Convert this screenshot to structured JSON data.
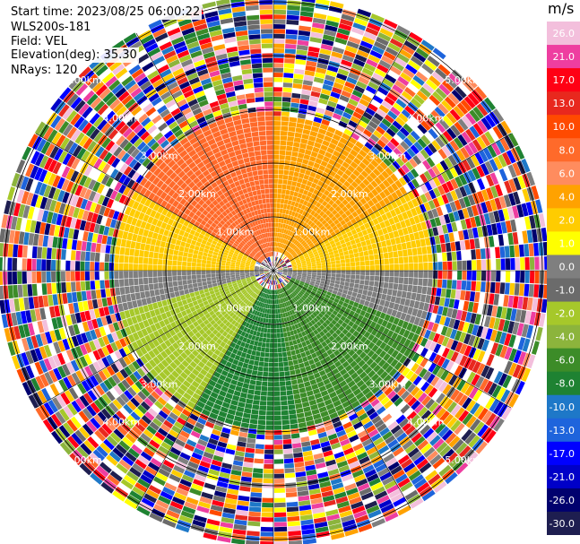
{
  "info": {
    "start_time": "Start time: 2023/08/25 06:00:22",
    "site": "WLS200s-181",
    "field": "Field: VEL",
    "elevation": "Elevation(deg): 35.30",
    "nrays": "NRays: 120"
  },
  "colorbar": {
    "unit": "m/s",
    "tick_labels": [
      "26.0",
      "21.0",
      "17.0",
      "13.0",
      "10.0",
      "8.0",
      "6.0",
      "4.0",
      "2.0",
      "1.0",
      "0.0",
      "-1.0",
      "-2.0",
      "-4.0",
      "-6.0",
      "-8.0",
      "-10.0",
      "-13.0",
      "-17.0",
      "-21.0",
      "-26.0",
      "-30.0"
    ],
    "segments": [
      {
        "from": 26,
        "to": 30,
        "color": "#f3bfdc"
      },
      {
        "from": 21,
        "to": 26,
        "color": "#ee3ea0"
      },
      {
        "from": 17,
        "to": 21,
        "color": "#ff0014"
      },
      {
        "from": 13,
        "to": 17,
        "color": "#e8281e"
      },
      {
        "from": 10,
        "to": 13,
        "color": "#ff4a00"
      },
      {
        "from": 8,
        "to": 10,
        "color": "#ff6a2a"
      },
      {
        "from": 6,
        "to": 8,
        "color": "#ff8c5e"
      },
      {
        "from": 4,
        "to": 6,
        "color": "#ffa200"
      },
      {
        "from": 2,
        "to": 4,
        "color": "#ffcc00"
      },
      {
        "from": 1,
        "to": 2,
        "color": "#ffff00"
      },
      {
        "from": 0,
        "to": 1,
        "color": "#7f7f7f"
      },
      {
        "from": -1,
        "to": 0,
        "color": "#6b6b6b"
      },
      {
        "from": -2,
        "to": -1,
        "color": "#a6c82a"
      },
      {
        "from": -4,
        "to": -2,
        "color": "#8cb43c"
      },
      {
        "from": -6,
        "to": -4,
        "color": "#3c8c28"
      },
      {
        "from": -8,
        "to": -6,
        "color": "#1e8232"
      },
      {
        "from": -10,
        "to": -8,
        "color": "#1e78c8"
      },
      {
        "from": -13,
        "to": -10,
        "color": "#1e64dc"
      },
      {
        "from": -17,
        "to": -13,
        "color": "#0000ff"
      },
      {
        "from": -21,
        "to": -17,
        "color": "#0000c8"
      },
      {
        "from": -26,
        "to": -21,
        "color": "#00006e"
      },
      {
        "from": -30,
        "to": -26,
        "color": "#1e1e50"
      }
    ]
  },
  "rings": [
    {
      "range_km": 1,
      "label": "1.00km"
    },
    {
      "range_km": 2,
      "label": "2.00km"
    },
    {
      "range_km": 3,
      "label": "3.00km"
    },
    {
      "range_km": 4,
      "label": "4.00km"
    },
    {
      "range_km": 5,
      "label": "5.00km"
    }
  ],
  "chart_data": {
    "type": "heatmap",
    "projection": "polar PPI scan",
    "field": "VEL",
    "units": "m/s",
    "n_rays": 120,
    "max_range_km": 5.1,
    "range_rings_km": [
      1,
      2,
      3,
      4,
      5
    ],
    "vmin": -30,
    "vmax": 30,
    "sectors": [
      {
        "azimuth_deg": [
          300,
          360
        ],
        "range_km": [
          0.2,
          2.9
        ],
        "value": 8,
        "note": "orange, northwest"
      },
      {
        "azimuth_deg": [
          0,
          60
        ],
        "range_km": [
          0.3,
          2.8
        ],
        "value": 4,
        "note": "orange/yellow, northeast"
      },
      {
        "azimuth_deg": [
          60,
          90
        ],
        "range_km": [
          0.3,
          2.9
        ],
        "value": 2,
        "note": "yellow, east"
      },
      {
        "azimuth_deg": [
          270,
          300
        ],
        "range_km": [
          0.3,
          2.9
        ],
        "value": 2,
        "note": "yellow, west"
      },
      {
        "azimuth_deg": [
          80,
          110
        ],
        "range_km": [
          0.1,
          3.0
        ],
        "value": 0,
        "note": "gray, east band"
      },
      {
        "azimuth_deg": [
          255,
          285
        ],
        "range_km": [
          0.1,
          3.0
        ],
        "value": 0,
        "note": "gray, west band"
      },
      {
        "azimuth_deg": [
          210,
          260
        ],
        "range_km": [
          0.3,
          3.0
        ],
        "value": -2,
        "note": "light green, southwest"
      },
      {
        "azimuth_deg": [
          110,
          170
        ],
        "range_km": [
          0.3,
          3.0
        ],
        "value": -6,
        "note": "green, southeast"
      },
      {
        "azimuth_deg": [
          170,
          210
        ],
        "range_km": [
          0.3,
          3.0
        ],
        "value": -8,
        "note": "blue, south"
      }
    ],
    "outer_noise_range_km": [
      2.9,
      5.1
    ],
    "outer_noise": "random values across all colors beyond ~3 km"
  }
}
